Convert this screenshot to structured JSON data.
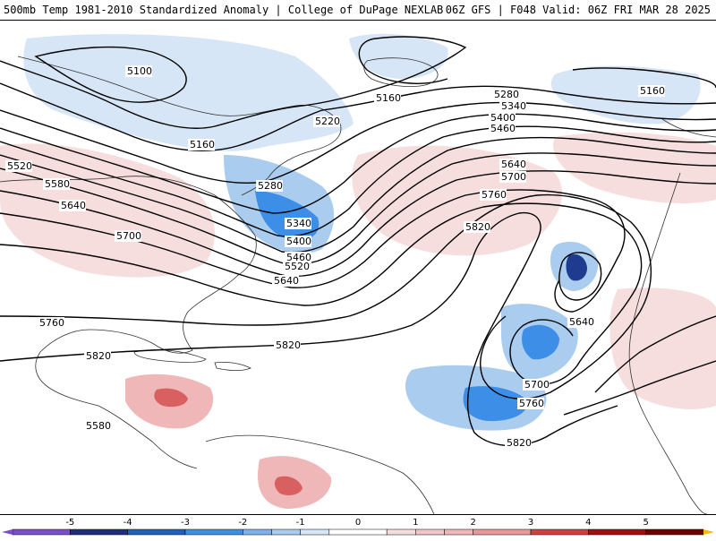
{
  "header": {
    "title_left": "500mb Temp 1981-2010 Standardized Anomaly | College of DuPage NEXLAB",
    "title_right": "06Z GFS | F048 Valid: 06Z FRI MAR 28 2025"
  },
  "colors": {
    "cold_strong": "#1f3b8f",
    "cold_mid": "#3d8ee6",
    "cold_light": "#a9ccef",
    "cold_faint": "#d6e6f7",
    "warm_faint": "#f7dede",
    "warm_light": "#efb7b7",
    "warm_mid": "#d96060",
    "warm_strong": "#b01818",
    "contour": "#000000",
    "land_outline": "#333333"
  },
  "contour_labels": [
    {
      "value": "5100"
    },
    {
      "value": "5160"
    },
    {
      "value": "5160"
    },
    {
      "value": "5160"
    },
    {
      "value": "5220"
    },
    {
      "value": "5280"
    },
    {
      "value": "5280"
    },
    {
      "value": "5340"
    },
    {
      "value": "5340"
    },
    {
      "value": "5400"
    },
    {
      "value": "5400"
    },
    {
      "value": "5460"
    },
    {
      "value": "5460"
    },
    {
      "value": "5520"
    },
    {
      "value": "5520"
    },
    {
      "value": "5580"
    },
    {
      "value": "5640"
    },
    {
      "value": "5640"
    },
    {
      "value": "5640"
    },
    {
      "value": "5640"
    },
    {
      "value": "5700"
    },
    {
      "value": "5700"
    },
    {
      "value": "5700"
    },
    {
      "value": "5760"
    },
    {
      "value": "5760"
    },
    {
      "value": "5760"
    },
    {
      "value": "5820"
    },
    {
      "value": "5820"
    },
    {
      "value": "5820"
    },
    {
      "value": "5820"
    },
    {
      "value": "5580"
    }
  ],
  "colorbar": {
    "min": -6,
    "max": 6,
    "ticks": [
      "-5",
      "-4",
      "-3",
      "-2",
      "-1",
      "0",
      "1",
      "2",
      "3",
      "4",
      "5"
    ],
    "bins": [
      {
        "from": -6,
        "to": -5,
        "color": "#7a4fc9"
      },
      {
        "from": -5,
        "to": -4,
        "color": "#1f2f7a"
      },
      {
        "from": -4,
        "to": -3,
        "color": "#1f5fbf"
      },
      {
        "from": -3,
        "to": -2,
        "color": "#3d8ee6"
      },
      {
        "from": -2,
        "to": -1.5,
        "color": "#7fb2ea"
      },
      {
        "from": -1.5,
        "to": -1,
        "color": "#a9ccef"
      },
      {
        "from": -1,
        "to": -0.5,
        "color": "#d6e6f7"
      },
      {
        "from": -0.5,
        "to": 0.5,
        "color": "#ffffff"
      },
      {
        "from": 0.5,
        "to": 1,
        "color": "#f7dede"
      },
      {
        "from": 1,
        "to": 1.5,
        "color": "#f2c6c6"
      },
      {
        "from": 1.5,
        "to": 2,
        "color": "#efb7b7"
      },
      {
        "from": 2,
        "to": 3,
        "color": "#e89a9a"
      },
      {
        "from": 3,
        "to": 4,
        "color": "#d04040"
      },
      {
        "from": 4,
        "to": 5,
        "color": "#a01010"
      },
      {
        "from": 5,
        "to": 6,
        "color": "#6e0000"
      }
    ],
    "end_color_high": "#f5b800"
  }
}
